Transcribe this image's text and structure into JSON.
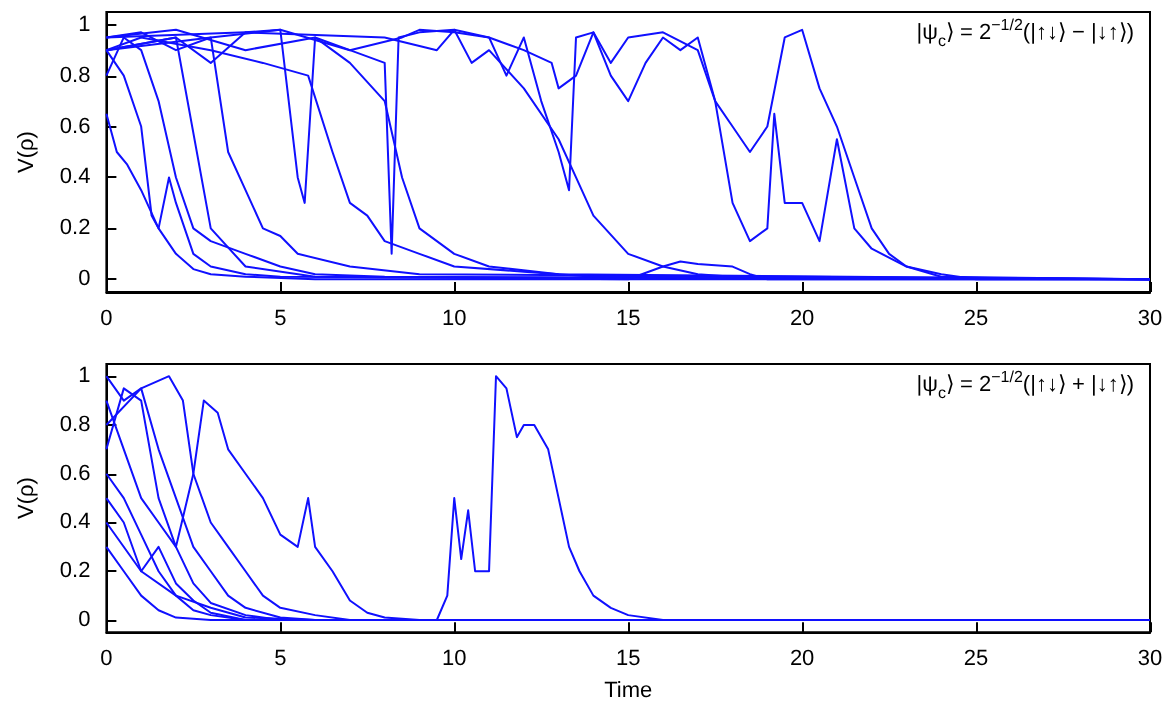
{
  "chart_data": [
    {
      "type": "line",
      "ylabel": "V(ρ)",
      "annotations": [
        "|ψ$_{c}$⟩ = 2$^{−1/2}$(|↑↓⟩ − |↓↑⟩)"
      ],
      "xlim": [
        0,
        30
      ],
      "xticks": [
        0,
        5,
        10,
        15,
        20,
        25,
        30
      ],
      "ylim": [
        -0.05,
        1.05
      ],
      "yticks": [
        0,
        0.2,
        0.4,
        0.6,
        0.8,
        1
      ],
      "marker": "none",
      "line_style": "solid",
      "grid": false,
      "series": [
        {
          "color": "#1010ff",
          "x": [
            0,
            0.3,
            0.6,
            1,
            1.5,
            2,
            2.5,
            3,
            4,
            6,
            30
          ],
          "values": [
            0.65,
            0.5,
            0.45,
            0.35,
            0.2,
            0.1,
            0.04,
            0.02,
            0.01,
            0,
            0
          ]
        },
        {
          "color": "#1010ff",
          "x": [
            0,
            0.5,
            1,
            1.3,
            1.5,
            1.8,
            2,
            2.5,
            3,
            4,
            5,
            30
          ],
          "values": [
            0.9,
            0.8,
            0.6,
            0.25,
            0.2,
            0.4,
            0.3,
            0.1,
            0.05,
            0.02,
            0.01,
            0
          ]
        },
        {
          "color": "#1010ff",
          "x": [
            0,
            0.5,
            1,
            1.5,
            2,
            2.5,
            3,
            4,
            5,
            6,
            8,
            30
          ],
          "values": [
            0.8,
            0.95,
            0.9,
            0.7,
            0.4,
            0.2,
            0.15,
            0.1,
            0.05,
            0.02,
            0.01,
            0
          ]
        },
        {
          "color": "#1010ff",
          "x": [
            0,
            1,
            2,
            3,
            3.5,
            4,
            4.5,
            5,
            5.5,
            7,
            9,
            30
          ],
          "values": [
            0.95,
            0.97,
            0.9,
            0.95,
            0.5,
            0.35,
            0.2,
            0.17,
            0.1,
            0.05,
            0.02,
            0
          ]
        },
        {
          "color": "#1010ff",
          "x": [
            0,
            2,
            3,
            4,
            5,
            5.5,
            5.7,
            6,
            6.5,
            7,
            8,
            8.5,
            9,
            10,
            11,
            13,
            30
          ],
          "values": [
            0.9,
            0.95,
            0.85,
            0.97,
            0.98,
            0.4,
            0.3,
            0.95,
            0.9,
            0.85,
            0.7,
            0.4,
            0.2,
            0.1,
            0.05,
            0.02,
            0
          ]
        },
        {
          "color": "#1010ff",
          "x": [
            0,
            1,
            3,
            4.5,
            5.8,
            6.5,
            7,
            7.5,
            8,
            9,
            10,
            12,
            14,
            30
          ],
          "values": [
            0.9,
            0.95,
            0.9,
            0.85,
            0.8,
            0.5,
            0.3,
            0.25,
            0.15,
            0.1,
            0.05,
            0.03,
            0.01,
            0
          ]
        },
        {
          "color": "#1010ff",
          "x": [
            0,
            2,
            4,
            6,
            7,
            8,
            8.2,
            8.4,
            9,
            10,
            10.5,
            11,
            12,
            13,
            13.5,
            14,
            15,
            16,
            17,
            18,
            30
          ],
          "values": [
            0.95,
            0.98,
            0.9,
            0.95,
            0.9,
            0.85,
            0.1,
            0.95,
            0.97,
            0.98,
            0.85,
            0.9,
            0.75,
            0.55,
            0.4,
            0.25,
            0.1,
            0.05,
            0.02,
            0.01,
            0
          ]
        },
        {
          "color": "#1010ff",
          "x": [
            0,
            3,
            5,
            7,
            8.5,
            9,
            10,
            11,
            11.5,
            12,
            12.5,
            13,
            13.3,
            13.5,
            14,
            14.5,
            15,
            15.5,
            16,
            16.5,
            17,
            17.5,
            18,
            18.5,
            19,
            19.2,
            19.5,
            20,
            20.5,
            21,
            21.5,
            22,
            23,
            24,
            25,
            30
          ],
          "values": [
            0.9,
            0.95,
            0.98,
            0.9,
            0.95,
            0.98,
            0.97,
            0.95,
            0.8,
            0.95,
            0.7,
            0.5,
            0.35,
            0.95,
            0.97,
            0.8,
            0.7,
            0.85,
            0.95,
            0.9,
            0.95,
            0.7,
            0.3,
            0.15,
            0.2,
            0.65,
            0.3,
            0.3,
            0.15,
            0.55,
            0.2,
            0.12,
            0.05,
            0.02,
            0,
            0
          ]
        },
        {
          "color": "#1010ff",
          "x": [
            0,
            4,
            8,
            9.5,
            10,
            11,
            12,
            12.8,
            13,
            13.5,
            14,
            14.5,
            15,
            16,
            17,
            17.5,
            18,
            18.5,
            19,
            19.5,
            20,
            20.5,
            21,
            21.5,
            22,
            22.5,
            23,
            24,
            30
          ],
          "values": [
            0.95,
            0.97,
            0.95,
            0.9,
            0.98,
            0.95,
            0.9,
            0.85,
            0.75,
            0.8,
            0.97,
            0.85,
            0.95,
            0.97,
            0.9,
            0.7,
            0.6,
            0.5,
            0.6,
            0.95,
            0.98,
            0.75,
            0.6,
            0.4,
            0.2,
            0.1,
            0.05,
            0.01,
            0
          ]
        },
        {
          "color": "#1010ff",
          "x": [
            0,
            2,
            3,
            4,
            6,
            15,
            16,
            16.5,
            17,
            18,
            18.5,
            19,
            30
          ],
          "values": [
            0.9,
            0.95,
            0.2,
            0.05,
            0.01,
            0,
            0.05,
            0.07,
            0.06,
            0.05,
            0.02,
            0,
            0
          ]
        }
      ]
    },
    {
      "type": "line",
      "xlabel": "Time",
      "ylabel": "V(ρ)",
      "annotations": [
        "|ψ$_{c}$⟩ = 2$^{−1/2}$(|↑↓⟩ + |↓↑⟩)"
      ],
      "xlim": [
        0,
        30
      ],
      "xticks": [
        0,
        5,
        10,
        15,
        20,
        25,
        30
      ],
      "ylim": [
        -0.05,
        1.05
      ],
      "yticks": [
        0,
        0.2,
        0.4,
        0.6,
        0.8,
        1
      ],
      "marker": "none",
      "line_style": "solid",
      "grid": false,
      "series": [
        {
          "color": "#1010ff",
          "x": [
            0,
            0.5,
            1,
            1.5,
            2,
            3,
            30
          ],
          "values": [
            0.3,
            0.2,
            0.1,
            0.04,
            0.01,
            0,
            0
          ]
        },
        {
          "color": "#1010ff",
          "x": [
            0,
            0.5,
            1,
            1.5,
            2,
            2.5,
            3,
            4,
            30
          ],
          "values": [
            0.6,
            0.5,
            0.35,
            0.2,
            0.1,
            0.04,
            0.02,
            0,
            0
          ]
        },
        {
          "color": "#1010ff",
          "x": [
            0,
            0.5,
            1,
            1.5,
            2,
            2.5,
            3,
            4,
            5,
            30
          ],
          "values": [
            0.9,
            0.7,
            0.5,
            0.4,
            0.3,
            0.15,
            0.07,
            0.02,
            0,
            0
          ]
        },
        {
          "color": "#1010ff",
          "x": [
            0,
            0.5,
            1,
            1.5,
            2,
            2.5,
            3,
            3.5,
            4,
            5,
            6,
            30
          ],
          "values": [
            1,
            0.9,
            0.95,
            0.7,
            0.5,
            0.3,
            0.2,
            0.1,
            0.05,
            0.01,
            0,
            0
          ]
        },
        {
          "color": "#1010ff",
          "x": [
            0,
            1,
            1.8,
            2.2,
            2.5,
            3,
            3.5,
            4,
            4.5,
            5,
            6,
            7,
            30
          ],
          "values": [
            0.8,
            0.95,
            1,
            0.9,
            0.6,
            0.4,
            0.3,
            0.2,
            0.1,
            0.05,
            0.02,
            0,
            0
          ]
        },
        {
          "color": "#1010ff",
          "x": [
            0,
            0.5,
            1,
            1.5,
            2,
            2.5,
            2.8,
            3.2,
            3.5,
            4,
            4.5,
            5,
            5.5,
            5.8,
            6,
            6.5,
            7,
            7.5,
            8,
            9,
            30
          ],
          "values": [
            0.7,
            0.95,
            0.9,
            0.5,
            0.3,
            0.6,
            0.9,
            0.85,
            0.7,
            0.6,
            0.5,
            0.35,
            0.3,
            0.5,
            0.3,
            0.2,
            0.08,
            0.03,
            0.01,
            0,
            0
          ]
        },
        {
          "color": "#1010ff",
          "x": [
            0,
            0.5,
            1,
            1.5,
            2,
            2.5,
            3,
            4,
            30
          ],
          "values": [
            0.5,
            0.4,
            0.2,
            0.3,
            0.15,
            0.08,
            0.03,
            0,
            0
          ]
        },
        {
          "color": "#1010ff",
          "x": [
            0,
            1,
            2,
            3,
            4,
            6,
            9.5,
            9.8,
            10,
            10.2,
            10.4,
            10.6,
            11,
            11.2,
            11.5,
            11.8,
            12,
            12.3,
            12.7,
            13,
            13.3,
            13.6,
            14,
            14.5,
            15,
            16,
            30
          ],
          "values": [
            0.4,
            0.2,
            0.1,
            0.05,
            0.01,
            0,
            0,
            0.1,
            0.5,
            0.25,
            0.45,
            0.2,
            0.2,
            1,
            0.95,
            0.75,
            0.8,
            0.8,
            0.7,
            0.5,
            0.3,
            0.2,
            0.1,
            0.05,
            0.02,
            0,
            0
          ]
        }
      ]
    }
  ]
}
